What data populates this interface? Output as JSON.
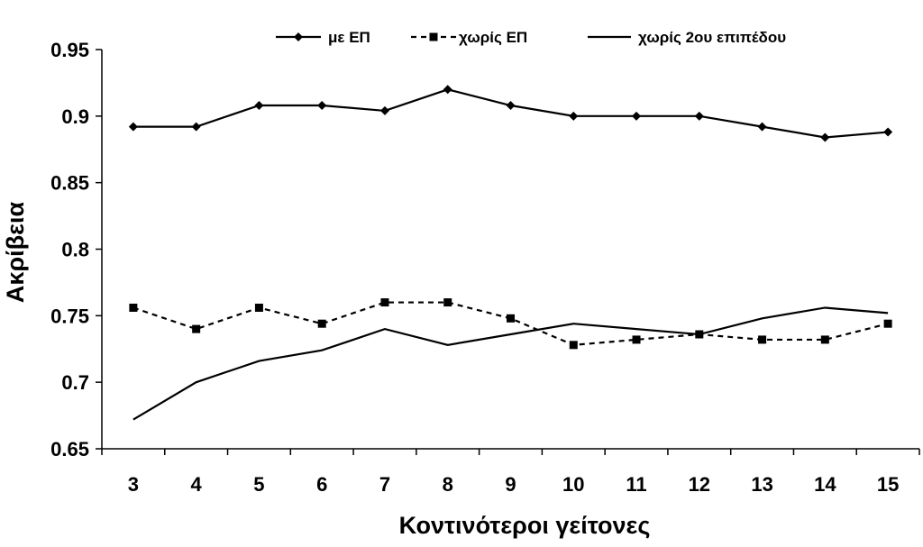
{
  "chart_data": {
    "type": "line",
    "title": "",
    "xlabel": "Κοντινότεροι γείτονες",
    "ylabel": "Ακρίβεια",
    "x": [
      3,
      4,
      5,
      6,
      7,
      8,
      9,
      10,
      11,
      12,
      13,
      14,
      15
    ],
    "ylim": [
      0.65,
      0.95
    ],
    "yticks": [
      "0.65",
      "0.7",
      "0.75",
      "0.8",
      "0.85",
      "0.9",
      "0.95"
    ],
    "grid": false,
    "legend_position": "top",
    "series": [
      {
        "name": "με ΕΠ",
        "style": "solid-diamond",
        "color": "#000000",
        "values": [
          0.892,
          0.892,
          0.908,
          0.908,
          0.904,
          0.92,
          0.908,
          0.9,
          0.9,
          0.9,
          0.892,
          0.884,
          0.888
        ]
      },
      {
        "name": "χωρίς ΕΠ",
        "style": "dashed-square",
        "color": "#000000",
        "values": [
          0.756,
          0.74,
          0.756,
          0.744,
          0.76,
          0.76,
          0.748,
          0.728,
          0.732,
          0.736,
          0.732,
          0.732,
          0.744
        ]
      },
      {
        "name": "χωρίς 2ου επιπέδου",
        "style": "solid-plain",
        "color": "#000000",
        "values": [
          0.672,
          0.7,
          0.716,
          0.724,
          0.74,
          0.728,
          0.736,
          0.744,
          0.74,
          0.736,
          0.748,
          0.756,
          0.752
        ]
      }
    ]
  }
}
